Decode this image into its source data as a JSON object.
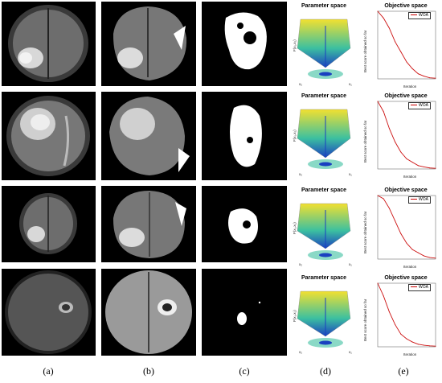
{
  "captions": [
    "(a)",
    "(b)",
    "(c)",
    "(d)",
    "(e)"
  ],
  "rows": [
    {
      "title_d": "Parameter space",
      "title_e": "Objective space",
      "legend_e": "WOA",
      "ylabel_d": "F(x₁,x₂)",
      "xaxis_d_1": "x₂",
      "xaxis_d_2": "x₁",
      "ylabel_e": "Best score obtained so far",
      "xlabel_e": "Iteration"
    },
    {
      "title_d": "Parameter space",
      "title_e": "Objective space",
      "legend_e": "WOA",
      "ylabel_d": "F(x₁,x₂)",
      "xaxis_d_1": "x₂",
      "xaxis_d_2": "x₁",
      "ylabel_e": "Best score obtained so far",
      "xlabel_e": "Iteration"
    },
    {
      "title_d": "Parameter space",
      "title_e": "Objective space",
      "legend_e": "WOA",
      "ylabel_d": "F(x₁,x₂)",
      "xaxis_d_1": "x₂",
      "xaxis_d_2": "x₁",
      "ylabel_e": "Best score obtained so far",
      "xlabel_e": "Iteration"
    },
    {
      "title_d": "Parameter space",
      "title_e": "Objective space",
      "legend_e": "WOA",
      "ylabel_d": "F(x₁,x₂)",
      "xaxis_d_1": "x₂",
      "xaxis_d_2": "x₁",
      "ylabel_e": "Best score obtained so far",
      "xlabel_e": "Iteration"
    }
  ],
  "chart_data": [
    {
      "type": "line",
      "title": "Objective space",
      "xlabel": "Iteration",
      "ylabel": "Best score obtained so far",
      "x": [
        0,
        5,
        10,
        15,
        20,
        25,
        30,
        35,
        40,
        45,
        50
      ],
      "series": [
        {
          "name": "WOA",
          "values": [
            20,
            18,
            15,
            11,
            8,
            5,
            3,
            1.5,
            0.8,
            0.3,
            0.2
          ]
        }
      ],
      "xlim": [
        0,
        50
      ],
      "ylim": [
        0,
        20
      ]
    },
    {
      "type": "line",
      "title": "Objective space",
      "xlabel": "Iteration",
      "ylabel": "Best score obtained so far",
      "x": [
        0,
        5,
        10,
        15,
        20,
        25,
        30,
        35,
        40,
        45,
        50
      ],
      "series": [
        {
          "name": "WOA",
          "values": [
            20,
            17,
            12,
            8,
            5,
            3,
            2,
            1,
            0.6,
            0.3,
            0.2
          ]
        }
      ],
      "xlim": [
        0,
        50
      ],
      "ylim": [
        0,
        20
      ]
    },
    {
      "type": "line",
      "title": "Objective space",
      "xlabel": "Iteration",
      "ylabel": "Best score obtained so far",
      "x": [
        0,
        5,
        10,
        15,
        20,
        25,
        30,
        35,
        40,
        45,
        50
      ],
      "series": [
        {
          "name": "WOA",
          "values": [
            20,
            19,
            16,
            12,
            8,
            5,
            3,
            2,
            1,
            0.5,
            0.3
          ]
        }
      ],
      "xlim": [
        0,
        50
      ],
      "ylim": [
        0,
        20
      ]
    },
    {
      "type": "line",
      "title": "Objective space",
      "xlabel": "Iteration",
      "ylabel": "Best score obtained so far",
      "x": [
        0,
        5,
        10,
        15,
        20,
        25,
        30,
        35,
        40,
        45,
        50
      ],
      "series": [
        {
          "name": "WOA",
          "values": [
            20,
            16,
            11,
            7,
            4,
            2.5,
            1.5,
            0.8,
            0.5,
            0.3,
            0.2
          ]
        }
      ],
      "xlim": [
        0,
        50
      ],
      "ylim": [
        0,
        20
      ]
    }
  ],
  "colors": {
    "line": "#cc1111",
    "surface_top": "#f2e030",
    "surface_mid": "#3cc0a0",
    "surface_low": "#1a40c0"
  }
}
